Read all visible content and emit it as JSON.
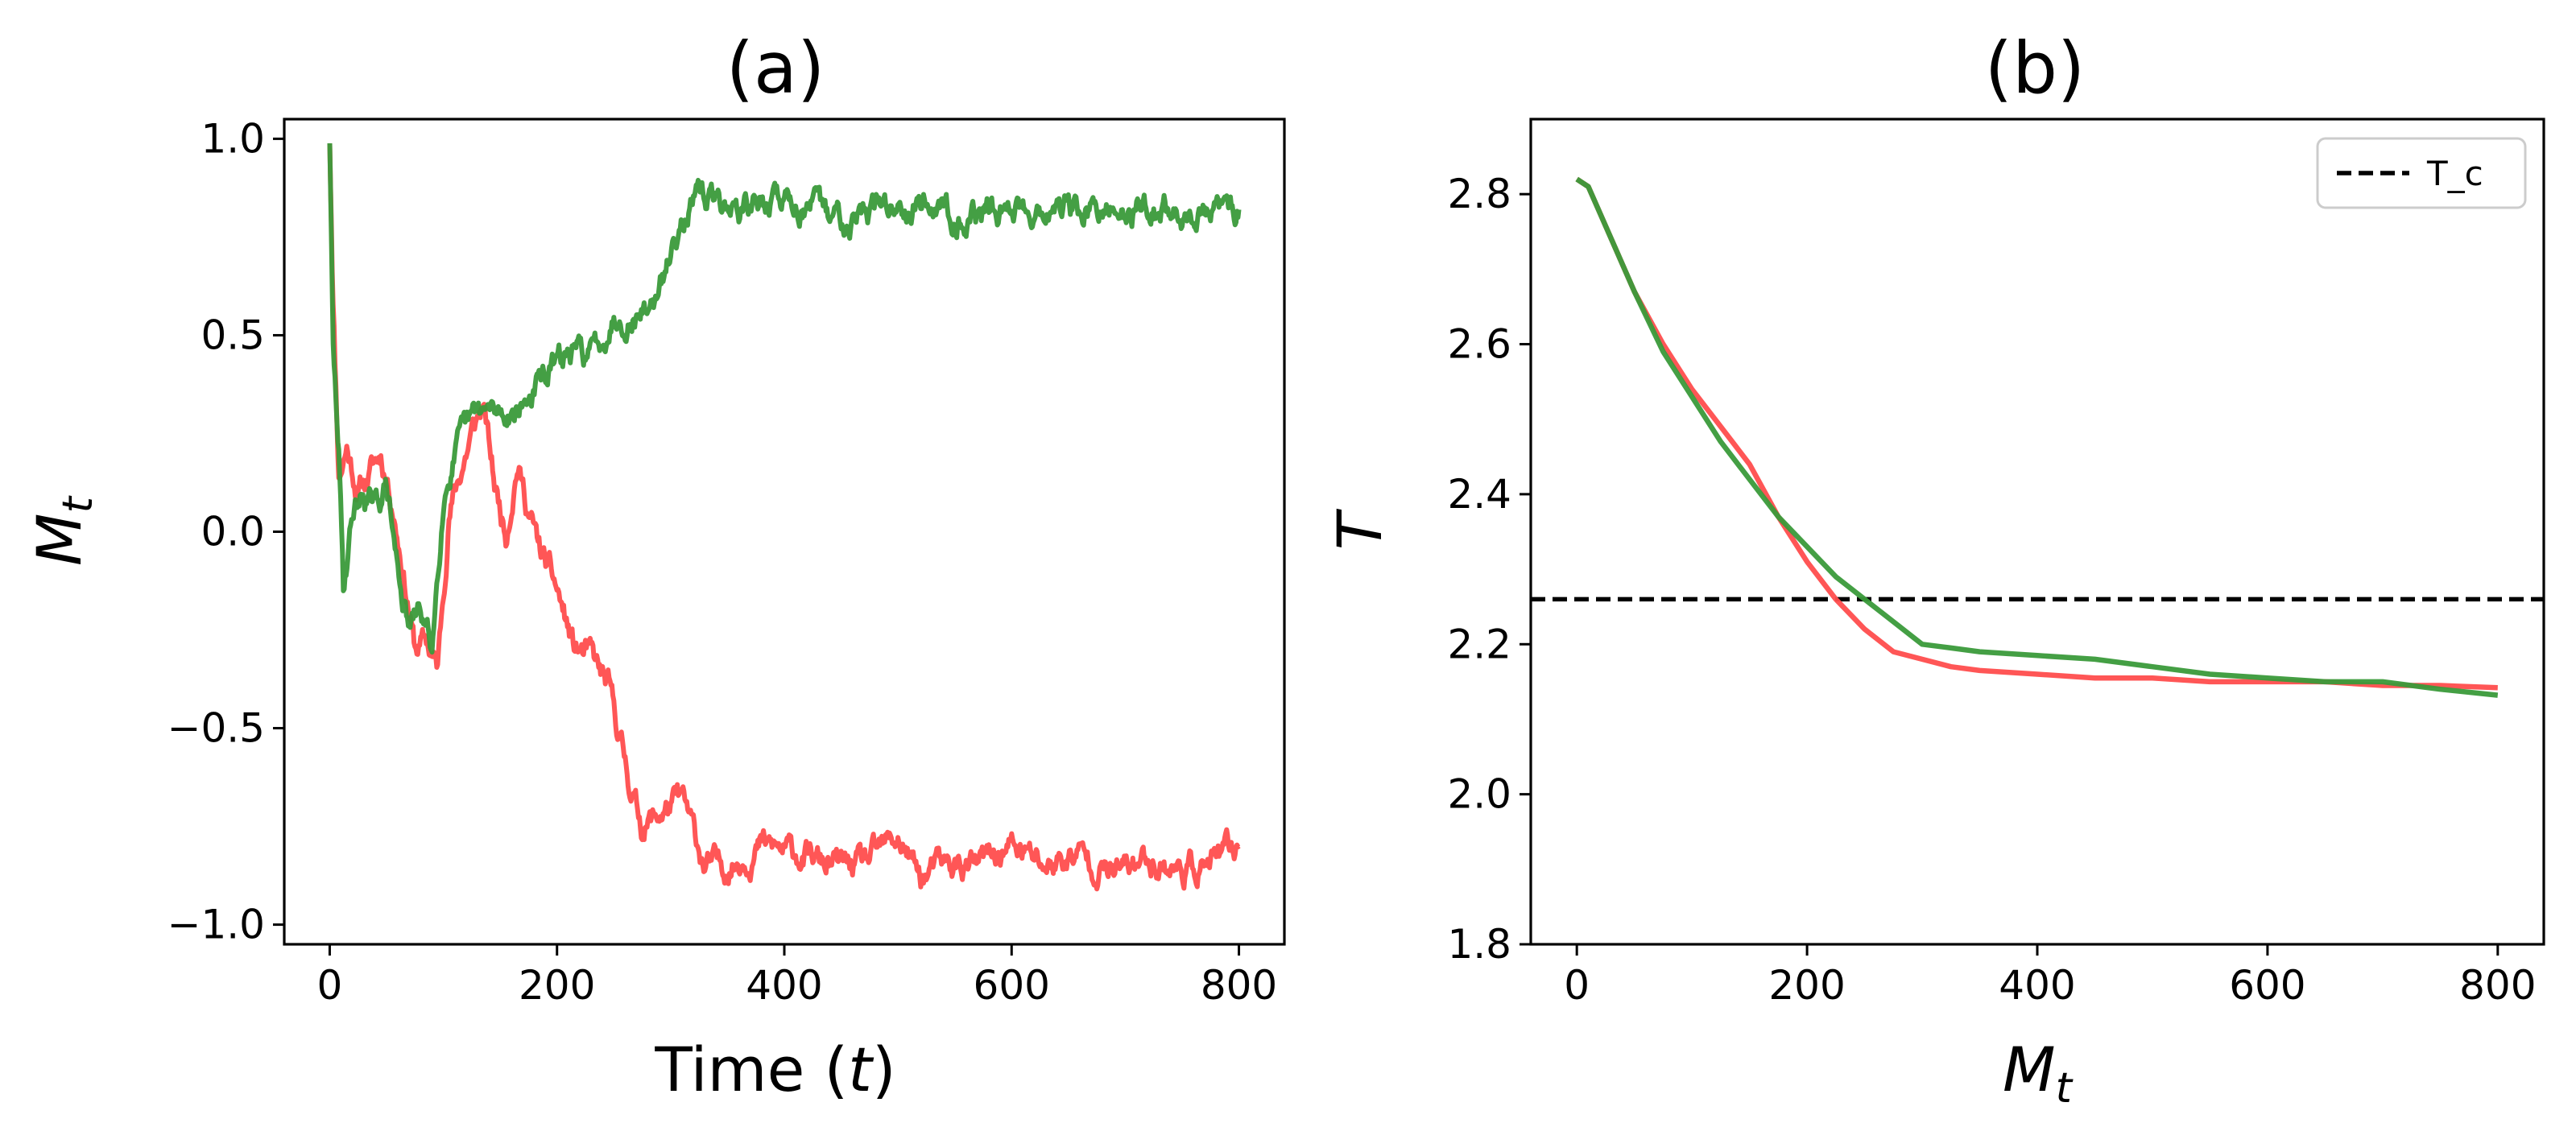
{
  "chart_data": [
    {
      "type": "line",
      "title": "(a)",
      "xlabel": "Time (t)",
      "ylabel": "M_t",
      "xlim": [
        -40,
        840
      ],
      "ylim": [
        -1.05,
        1.05
      ],
      "xticks": [
        0,
        200,
        400,
        600,
        800
      ],
      "yticks": [
        1.0,
        0.5,
        0.0,
        -0.5,
        -1.0
      ],
      "xtick_labels": [
        "0",
        "200",
        "400",
        "600",
        "800"
      ],
      "ytick_labels": [
        "1.0",
        "0.5",
        "0.0",
        "−0.5",
        "−1.0"
      ],
      "series": [
        {
          "name": "red",
          "color": "#ff4d4d",
          "noise": 0.045,
          "seed": 11,
          "x": [
            0,
            3,
            8,
            15,
            25,
            35,
            45,
            55,
            65,
            75,
            85,
            95,
            105,
            115,
            125,
            135,
            145,
            155,
            165,
            175,
            185,
            200,
            215,
            230,
            245,
            255,
            265,
            275,
            290,
            310,
            330,
            350,
            380,
            410,
            440,
            470,
            500,
            520,
            540,
            570,
            600,
            630,
            660,
            690,
            720,
            750,
            780,
            800
          ],
          "y": [
            1.0,
            0.6,
            0.15,
            0.22,
            0.1,
            0.15,
            0.2,
            0.08,
            -0.1,
            -0.3,
            -0.28,
            -0.35,
            0.05,
            0.15,
            0.25,
            0.32,
            0.12,
            0.0,
            0.18,
            0.05,
            -0.05,
            -0.15,
            -0.3,
            -0.32,
            -0.4,
            -0.52,
            -0.65,
            -0.75,
            -0.72,
            -0.68,
            -0.85,
            -0.85,
            -0.8,
            -0.82,
            -0.85,
            -0.85,
            -0.78,
            -0.88,
            -0.85,
            -0.85,
            -0.8,
            -0.85,
            -0.82,
            -0.87,
            -0.83,
            -0.86,
            -0.84,
            -0.8
          ]
        },
        {
          "name": "green",
          "color": "#3a9a3a",
          "noise": 0.045,
          "seed": 29,
          "x": [
            0,
            3,
            8,
            12,
            20,
            30,
            40,
            50,
            60,
            70,
            80,
            90,
            100,
            110,
            120,
            130,
            150,
            170,
            190,
            210,
            230,
            250,
            270,
            290,
            300,
            310,
            330,
            360,
            400,
            440,
            480,
            520,
            560,
            600,
            640,
            680,
            720,
            760,
            800
          ],
          "y": [
            1.0,
            0.45,
            0.2,
            -0.15,
            0.05,
            0.1,
            0.05,
            0.12,
            -0.1,
            -0.25,
            -0.2,
            -0.3,
            0.1,
            0.2,
            0.25,
            0.3,
            0.3,
            0.32,
            0.4,
            0.45,
            0.45,
            0.55,
            0.55,
            0.6,
            0.7,
            0.82,
            0.85,
            0.82,
            0.85,
            0.8,
            0.82,
            0.85,
            0.8,
            0.83,
            0.82,
            0.8,
            0.83,
            0.8,
            0.82
          ]
        }
      ]
    },
    {
      "type": "line",
      "title": "(b)",
      "xlabel": "M_t",
      "ylabel": "T",
      "xlim": [
        -40,
        840
      ],
      "ylim": [
        1.8,
        2.9
      ],
      "xticks": [
        0,
        200,
        400,
        600,
        800
      ],
      "yticks": [
        2.8,
        2.6,
        2.4,
        2.2,
        2.0,
        1.8
      ],
      "xtick_labels": [
        "0",
        "200",
        "400",
        "600",
        "800"
      ],
      "ytick_labels": [
        "2.8",
        "2.6",
        "2.4",
        "2.2",
        "2.0",
        "1.8"
      ],
      "hline": {
        "y": 2.26,
        "label": "T_c",
        "color": "#000000"
      },
      "legend": {
        "position": "upper right",
        "entries": [
          "T_c"
        ]
      },
      "series": [
        {
          "name": "red",
          "color": "#ff4d4d",
          "x": [
            0,
            10,
            30,
            50,
            75,
            100,
            125,
            150,
            175,
            200,
            225,
            250,
            275,
            300,
            325,
            350,
            400,
            450,
            500,
            550,
            600,
            650,
            700,
            750,
            800
          ],
          "y": [
            2.82,
            2.81,
            2.74,
            2.67,
            2.6,
            2.54,
            2.49,
            2.44,
            2.37,
            2.31,
            2.26,
            2.22,
            2.19,
            2.18,
            2.17,
            2.165,
            2.16,
            2.155,
            2.155,
            2.15,
            2.15,
            2.15,
            2.145,
            2.145,
            2.142
          ]
        },
        {
          "name": "green",
          "color": "#3a9a3a",
          "x": [
            0,
            10,
            30,
            50,
            75,
            100,
            125,
            150,
            175,
            200,
            225,
            250,
            275,
            300,
            325,
            350,
            400,
            450,
            500,
            550,
            600,
            650,
            700,
            750,
            800
          ],
          "y": [
            2.82,
            2.81,
            2.74,
            2.67,
            2.59,
            2.53,
            2.47,
            2.42,
            2.37,
            2.33,
            2.29,
            2.26,
            2.23,
            2.2,
            2.195,
            2.19,
            2.185,
            2.18,
            2.17,
            2.16,
            2.155,
            2.15,
            2.15,
            2.14,
            2.132
          ]
        }
      ]
    }
  ]
}
